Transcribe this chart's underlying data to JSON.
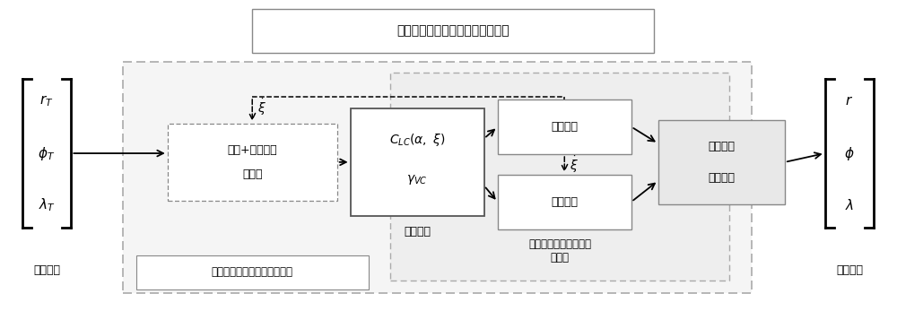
{
  "title": "制导、姿态控制、变形一体化设计",
  "bg_color": "#ffffff",
  "input_label": "目标输入",
  "output_label": "目标输出",
  "outer_loop_label": "外环：实现对飞行轨迹的控制",
  "inner_loop_label": "内环：完成对制导指令\n的跟踪",
  "control_cmd_label": "控制指令",
  "guidance_label1": "航程+方位误差",
  "guidance_label2": "制导律",
  "deform_label": "变形控制",
  "attitude_label": "姿态控制",
  "dynamics_label1": "飞行器动",
  "dynamics_label2": "力学模型",
  "font_size": 10,
  "font_size_small": 9
}
